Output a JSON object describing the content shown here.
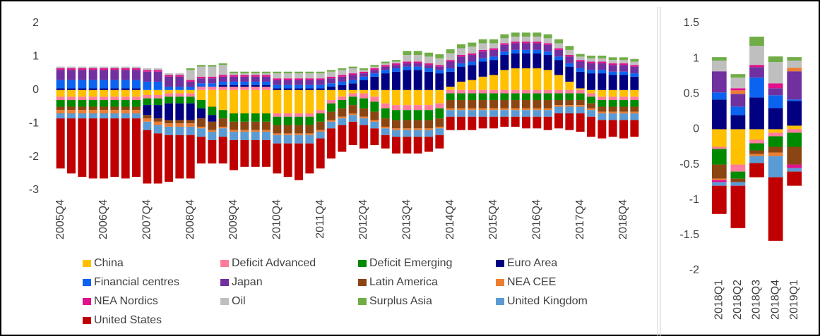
{
  "chart_data": [
    {
      "type": "bar",
      "stacked": true,
      "categories": [
        "2005Q4",
        null,
        null,
        null,
        "2006Q4",
        null,
        null,
        null,
        "2007Q4",
        null,
        null,
        null,
        "2008Q4",
        null,
        null,
        null,
        "2009Q4",
        null,
        null,
        null,
        "2010Q4",
        null,
        null,
        null,
        "2011Q4",
        null,
        null,
        null,
        "2012Q4",
        null,
        null,
        null,
        "2013Q4",
        null,
        null,
        null,
        "2014Q4",
        null,
        null,
        null,
        "2015Q4",
        null,
        null,
        null,
        "2016Q4",
        null,
        null,
        null,
        "2017Q4",
        null,
        null,
        null,
        "2018Q4",
        null
      ],
      "ylim": [
        -3,
        2
      ],
      "yticks": [
        -3,
        -2,
        -1,
        0,
        1,
        2
      ],
      "grid": false,
      "legend": "bottom",
      "series": [
        {
          "name": "China",
          "color": "#ffc000",
          "values": [
            -0.2,
            -0.2,
            -0.2,
            -0.2,
            -0.2,
            -0.2,
            -0.2,
            -0.2,
            -0.15,
            -0.15,
            -0.1,
            -0.1,
            -0.1,
            -0.3,
            -0.5,
            -0.6,
            -0.7,
            -0.7,
            -0.7,
            -0.7,
            -0.7,
            -0.7,
            -0.7,
            -0.7,
            -0.6,
            -0.3,
            -0.2,
            -0.1,
            -0.1,
            -0.2,
            -0.4,
            -0.45,
            -0.45,
            -0.45,
            -0.45,
            -0.4,
            0.1,
            0.25,
            0.3,
            0.4,
            0.45,
            0.6,
            0.65,
            0.65,
            0.65,
            0.6,
            0.45,
            0.25,
            0.05,
            -0.1,
            -0.2,
            -0.2,
            -0.2,
            -0.2
          ]
        },
        {
          "name": "Deficit Advanced",
          "color": "#ff7c9c",
          "values": [
            -0.1,
            -0.1,
            -0.1,
            -0.1,
            -0.1,
            -0.1,
            -0.1,
            -0.1,
            -0.1,
            -0.1,
            -0.1,
            -0.1,
            -0.1,
            0.1,
            0.1,
            0.1,
            0.1,
            0.1,
            0.1,
            0.1,
            -0.1,
            -0.1,
            -0.1,
            -0.1,
            -0.1,
            -0.1,
            -0.1,
            -0.1,
            -0.15,
            -0.15,
            -0.15,
            -0.15,
            -0.15,
            -0.15,
            -0.15,
            -0.15,
            -0.1,
            -0.1,
            -0.1,
            -0.1,
            -0.1,
            -0.1,
            -0.1,
            -0.1,
            -0.1,
            -0.1,
            -0.1,
            -0.1,
            -0.1,
            -0.1,
            -0.1,
            -0.1,
            -0.1,
            -0.1
          ]
        },
        {
          "name": "Deficit Emerging",
          "color": "#008a00",
          "values": [
            -0.2,
            -0.2,
            -0.2,
            -0.2,
            -0.2,
            -0.2,
            -0.2,
            -0.2,
            -0.2,
            -0.2,
            -0.2,
            -0.2,
            -0.2,
            -0.25,
            -0.25,
            -0.25,
            -0.25,
            -0.25,
            -0.25,
            -0.25,
            -0.25,
            -0.25,
            -0.25,
            -0.25,
            -0.25,
            -0.25,
            -0.25,
            -0.25,
            -0.3,
            -0.3,
            -0.3,
            -0.3,
            -0.3,
            -0.3,
            -0.3,
            -0.3,
            -0.2,
            -0.2,
            -0.2,
            -0.2,
            -0.2,
            -0.2,
            -0.2,
            -0.2,
            -0.2,
            -0.2,
            -0.2,
            -0.2,
            -0.2,
            -0.2,
            -0.2,
            -0.2,
            -0.2,
            -0.2
          ]
        },
        {
          "name": "Euro Area",
          "color": "#000080",
          "values": [
            0.05,
            0.05,
            0.05,
            0.05,
            0.05,
            0.05,
            0.05,
            0.05,
            -0.3,
            -0.4,
            -0.5,
            -0.5,
            -0.5,
            -0.3,
            -0.2,
            0.05,
            0.05,
            0.05,
            0.05,
            0.05,
            0.05,
            0.05,
            0.05,
            0.05,
            0.05,
            0.1,
            0.15,
            0.2,
            0.3,
            0.4,
            0.5,
            0.55,
            0.6,
            0.6,
            0.55,
            0.5,
            0.45,
            0.45,
            0.45,
            0.45,
            0.45,
            0.45,
            0.45,
            0.45,
            0.45,
            0.45,
            0.45,
            0.45,
            0.5,
            0.5,
            0.5,
            0.45,
            0.45,
            0.4
          ]
        },
        {
          "name": "Financial centres",
          "color": "#0a64f0",
          "values": [
            0.25,
            0.25,
            0.25,
            0.25,
            0.25,
            0.25,
            0.25,
            0.25,
            0.25,
            0.25,
            0.1,
            0.1,
            0.1,
            0.1,
            0.1,
            0.1,
            0.1,
            0.1,
            0.1,
            0.1,
            0.1,
            0.1,
            0.1,
            0.1,
            0.1,
            0.1,
            0.1,
            0.1,
            0.1,
            0.1,
            0.1,
            0.1,
            0.1,
            0.1,
            0.1,
            0.1,
            0.1,
            0.1,
            0.1,
            0.1,
            0.1,
            0.1,
            0.1,
            0.1,
            0.1,
            0.1,
            0.1,
            0.1,
            0.1,
            0.1,
            0.1,
            0.1,
            0.1,
            0.1
          ]
        },
        {
          "name": "Japan",
          "color": "#7030a0",
          "values": [
            0.3,
            0.3,
            0.3,
            0.3,
            0.3,
            0.3,
            0.3,
            0.3,
            0.3,
            0.3,
            0.3,
            0.3,
            0.15,
            0.15,
            0.15,
            0.15,
            0.15,
            0.15,
            0.15,
            0.15,
            0.15,
            0.15,
            0.15,
            0.15,
            0.15,
            0.15,
            0.15,
            0.15,
            0.1,
            0.1,
            0.1,
            0.1,
            0.1,
            0.1,
            0.1,
            0.1,
            0.2,
            0.2,
            0.2,
            0.2,
            0.2,
            0.2,
            0.2,
            0.2,
            0.2,
            0.2,
            0.2,
            0.2,
            0.2,
            0.2,
            0.2,
            0.2,
            0.2,
            0.2
          ]
        },
        {
          "name": "Latin America",
          "color": "#8b4513",
          "values": [
            -0.1,
            -0.1,
            -0.1,
            -0.1,
            -0.1,
            -0.1,
            -0.1,
            -0.1,
            -0.1,
            -0.1,
            -0.1,
            -0.1,
            -0.1,
            -0.25,
            -0.25,
            -0.25,
            -0.25,
            -0.25,
            -0.25,
            -0.25,
            -0.25,
            -0.25,
            -0.25,
            -0.25,
            -0.25,
            -0.25,
            -0.25,
            -0.25,
            -0.25,
            -0.25,
            -0.25,
            -0.25,
            -0.25,
            -0.25,
            -0.25,
            -0.25,
            -0.25,
            -0.25,
            -0.25,
            -0.25,
            -0.25,
            -0.25,
            -0.25,
            -0.25,
            -0.25,
            -0.25,
            -0.15,
            -0.15,
            -0.15,
            -0.15,
            -0.15,
            -0.15,
            -0.15,
            -0.15
          ]
        },
        {
          "name": "NEA CEE",
          "color": "#ed7d31",
          "values": [
            -0.1,
            -0.1,
            -0.1,
            -0.1,
            -0.1,
            -0.1,
            -0.1,
            -0.1,
            -0.1,
            -0.1,
            -0.1,
            -0.1,
            -0.1,
            -0.05,
            -0.05,
            -0.05,
            -0.05,
            -0.05,
            -0.05,
            -0.05,
            -0.05,
            -0.05,
            -0.05,
            -0.05,
            -0.05,
            -0.05,
            -0.05,
            -0.05,
            -0.05,
            -0.05,
            -0.05,
            -0.05,
            -0.05,
            -0.05,
            -0.05,
            -0.05,
            -0.05,
            -0.05,
            -0.05,
            -0.05,
            -0.05,
            -0.05,
            -0.05,
            -0.05,
            -0.05,
            -0.05,
            -0.05,
            -0.05,
            -0.05,
            -0.05,
            -0.05,
            -0.05,
            -0.05,
            -0.05
          ]
        },
        {
          "name": "NEA Nordics",
          "color": "#e0118a",
          "values": [
            0.05,
            0.05,
            0.05,
            0.05,
            0.05,
            0.05,
            0.05,
            0.05,
            0.05,
            0.05,
            0.05,
            0.05,
            0.05,
            0.05,
            0.05,
            0.05,
            0.05,
            0.05,
            0.05,
            0.05,
            0.05,
            0.05,
            0.05,
            0.05,
            0.05,
            0.05,
            0.05,
            0.05,
            0.05,
            0.05,
            0.05,
            0.05,
            0.05,
            0.05,
            0.05,
            0.05,
            0.05,
            0.05,
            0.05,
            0.05,
            0.05,
            0.05,
            0.05,
            0.05,
            0.05,
            0.05,
            0.05,
            0.05,
            0.05,
            0.05,
            0.05,
            0.05,
            0.05,
            0.05
          ]
        },
        {
          "name": "Oil",
          "color": "#bfbfbf",
          "values": [
            0.05,
            0.05,
            0.05,
            0.05,
            0.05,
            0.05,
            0.05,
            0.05,
            0.05,
            0.05,
            0.05,
            0.05,
            0.3,
            0.3,
            0.3,
            0.3,
            0.05,
            0.05,
            0.05,
            0.05,
            0.15,
            0.15,
            0.15,
            0.15,
            0.15,
            0.15,
            0.15,
            0.15,
            0.05,
            0.05,
            0.05,
            0.05,
            0.2,
            0.2,
            0.2,
            0.2,
            0.2,
            0.2,
            0.2,
            0.2,
            0.15,
            0.15,
            0.15,
            0.15,
            0.15,
            0.15,
            0.15,
            0.15,
            0.1,
            0.1,
            0.1,
            0.1,
            0.1,
            0.1
          ]
        },
        {
          "name": "Surplus Asia",
          "color": "#70ad47",
          "values": [
            0,
            0,
            0,
            0,
            0,
            0,
            0,
            0,
            0,
            0,
            0,
            0,
            0.05,
            0.05,
            0.05,
            0.05,
            0.05,
            0.05,
            0.05,
            0.05,
            0.05,
            0.05,
            0.05,
            0.05,
            0.05,
            0.05,
            0.05,
            0.05,
            0.05,
            0.05,
            0.05,
            0.05,
            0.12,
            0.12,
            0.12,
            0.12,
            0.12,
            0.12,
            0.12,
            0.12,
            0.12,
            0.12,
            0.12,
            0.12,
            0.12,
            0.12,
            0.12,
            0.12,
            0.08,
            0.08,
            0.08,
            0.08,
            0.08,
            0.08
          ]
        },
        {
          "name": "United Kingdom",
          "color": "#5b9bd5",
          "values": [
            -0.15,
            -0.15,
            -0.15,
            -0.15,
            -0.15,
            -0.15,
            -0.15,
            -0.15,
            -0.25,
            -0.25,
            -0.25,
            -0.25,
            -0.25,
            -0.25,
            -0.25,
            -0.25,
            -0.25,
            -0.25,
            -0.25,
            -0.25,
            -0.25,
            -0.25,
            -0.25,
            -0.25,
            -0.2,
            -0.2,
            -0.2,
            -0.2,
            -0.2,
            -0.2,
            -0.2,
            -0.2,
            -0.2,
            -0.2,
            -0.2,
            -0.2,
            -0.2,
            -0.2,
            -0.2,
            -0.2,
            -0.2,
            -0.2,
            -0.2,
            -0.2,
            -0.2,
            -0.2,
            -0.2,
            -0.2,
            -0.2,
            -0.2,
            -0.2,
            -0.2,
            -0.2,
            -0.2
          ]
        },
        {
          "name": "United States",
          "color": "#c00000",
          "values": [
            -1.5,
            -1.65,
            -1.75,
            -1.8,
            -1.8,
            -1.75,
            -1.8,
            -1.75,
            -1.6,
            -1.5,
            -1.4,
            -1.3,
            -1.3,
            -0.8,
            -0.7,
            -0.8,
            -0.9,
            -0.8,
            -0.8,
            -0.8,
            -0.9,
            -1.0,
            -1.1,
            -0.9,
            -0.9,
            -0.9,
            -0.8,
            -0.7,
            -0.7,
            -0.5,
            -0.4,
            -0.5,
            -0.5,
            -0.5,
            -0.45,
            -0.4,
            -0.4,
            -0.4,
            -0.4,
            -0.35,
            -0.35,
            -0.3,
            -0.3,
            -0.35,
            -0.35,
            -0.4,
            -0.45,
            -0.5,
            -0.55,
            -0.6,
            -0.55,
            -0.5,
            -0.55,
            -0.5
          ]
        }
      ]
    },
    {
      "type": "bar",
      "stacked": true,
      "categories": [
        "2018Q1",
        "2018Q2",
        "2018Q3",
        "2018Q4",
        "2019Q1"
      ],
      "ylim": [
        -2,
        1.5
      ],
      "yticks": [
        -2,
        -1.5,
        -1,
        -0.5,
        0,
        0.5,
        1,
        1.5
      ],
      "grid": false,
      "series": [
        {
          "color": "#ffc000",
          "values": [
            -0.25,
            -0.5,
            -0.15,
            -0.05,
            0.05
          ]
        },
        {
          "color": "#ff7c9c",
          "values": [
            -0.03,
            -0.1,
            -0.05,
            -0.05,
            -0.05
          ]
        },
        {
          "color": "#008a00",
          "values": [
            -0.22,
            -0.1,
            -0.1,
            -0.15,
            -0.2
          ]
        },
        {
          "color": "#000080",
          "values": [
            0.42,
            0.2,
            0.45,
            0.3,
            0.35
          ]
        },
        {
          "color": "#0a64f0",
          "values": [
            0.1,
            0.12,
            0.28,
            0.18,
            0.02
          ]
        },
        {
          "color": "#7030a0",
          "values": [
            0.3,
            0.18,
            0.15,
            0.1,
            0.4
          ]
        },
        {
          "color": "#8b4513",
          "values": [
            -0.2,
            -0.05,
            -0.05,
            -0.08,
            -0.25
          ]
        },
        {
          "color": "#ed7d31",
          "values": [
            -0.02,
            0.05,
            -0.03,
            -0.05,
            0.05
          ]
        },
        {
          "color": "#e0118a",
          "values": [
            -0.03,
            0.03,
            0.03,
            0.07,
            -0.05
          ]
        },
        {
          "color": "#bfbfbf",
          "values": [
            0.15,
            0.15,
            0.27,
            0.3,
            0.1
          ]
        },
        {
          "color": "#70ad47",
          "values": [
            0.05,
            0.05,
            0.13,
            0.08,
            0.05
          ]
        },
        {
          "color": "#5b9bd5",
          "values": [
            -0.05,
            -0.05,
            -0.1,
            -0.3,
            -0.05
          ]
        },
        {
          "color": "#c00000",
          "values": [
            -0.4,
            -0.6,
            -0.2,
            -0.9,
            -0.2
          ]
        }
      ]
    }
  ]
}
